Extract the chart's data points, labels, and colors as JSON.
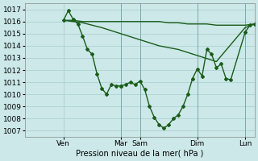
{
  "bg_color": "#cce8e8",
  "line_color": "#1a5c1a",
  "grid_color": "#a8cece",
  "ylabel_fontsize": 6.5,
  "xlabel_label": "Pression niveau de la mer( hPa )",
  "ylim": [
    1006.5,
    1017.5
  ],
  "yticks": [
    1007,
    1008,
    1009,
    1010,
    1011,
    1012,
    1013,
    1014,
    1015,
    1016,
    1017
  ],
  "xlim": [
    -2,
    10
  ],
  "day_tick_positions": [
    0,
    3.0,
    4.0,
    7.0,
    9.5
  ],
  "day_labels": [
    "Ven",
    "Mar",
    "Sam",
    "Dim",
    "Lun"
  ],
  "vline_positions": [
    0,
    3.0,
    4.0,
    7.0,
    9.5
  ],
  "series": [
    {
      "x": [
        0,
        0.5,
        1.0,
        1.5,
        2.0,
        2.5,
        3.0,
        3.5,
        4.0,
        4.5,
        5.0,
        5.5,
        6.0,
        6.5,
        7.0,
        7.5,
        8.0,
        8.5,
        9.0,
        9.5,
        10.0
      ],
      "y": [
        1016.1,
        1016.1,
        1016.0,
        1016.0,
        1016.0,
        1016.0,
        1016.0,
        1016.0,
        1016.0,
        1016.0,
        1016.0,
        1015.9,
        1015.9,
        1015.8,
        1015.8,
        1015.8,
        1015.7,
        1015.7,
        1015.7,
        1015.7,
        1015.8
      ],
      "marker": null,
      "lw": 1.0
    },
    {
      "x": [
        0,
        1.0,
        2.0,
        3.0,
        4.0,
        5.0,
        6.0,
        7.0,
        8.0,
        9.5,
        10.0
      ],
      "y": [
        1016.1,
        1015.9,
        1015.5,
        1015.0,
        1014.5,
        1014.0,
        1013.7,
        1013.2,
        1012.7,
        1015.5,
        1015.8
      ],
      "marker": null,
      "lw": 1.0
    },
    {
      "x": [
        0,
        0.25,
        0.5,
        0.75,
        1.0,
        1.25,
        1.5,
        1.75,
        2.0,
        2.25,
        2.5,
        2.75,
        3.0
      ],
      "y": [
        1016.1,
        1016.9,
        1016.2,
        1015.8,
        1014.8,
        1013.7,
        1013.3,
        1011.7,
        1010.5,
        1010.0,
        1010.8,
        1010.7,
        1010.7
      ],
      "marker": "D",
      "ms": 2.0,
      "lw": 1.0
    },
    {
      "x": [
        3.0,
        3.25,
        3.5,
        3.75,
        4.0,
        4.25,
        4.5,
        4.75,
        5.0,
        5.25,
        5.5,
        5.75,
        6.0,
        6.25,
        6.5,
        6.75,
        7.0,
        7.25,
        7.5,
        7.75,
        8.0,
        8.25,
        8.5,
        8.75,
        9.5,
        9.75,
        10.0
      ],
      "y": [
        1010.7,
        1010.8,
        1011.0,
        1010.8,
        1011.1,
        1010.4,
        1009.0,
        1008.1,
        1007.5,
        1007.2,
        1007.5,
        1008.0,
        1008.3,
        1009.0,
        1010.0,
        1011.3,
        1012.1,
        1011.5,
        1013.7,
        1013.3,
        1012.2,
        1012.5,
        1011.3,
        1011.2,
        1015.1,
        1015.7,
        1015.8
      ],
      "marker": "D",
      "ms": 2.0,
      "lw": 1.0
    }
  ]
}
